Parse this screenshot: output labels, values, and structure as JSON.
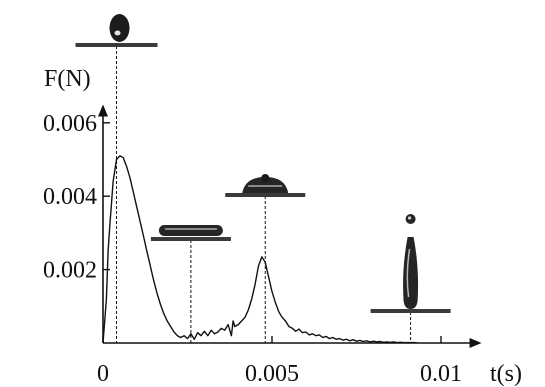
{
  "chart_data": {
    "type": "line",
    "title": "",
    "xlabel": "t(s)",
    "ylabel": "F(N)",
    "xlim": [
      0,
      0.0112
    ],
    "ylim": [
      0,
      0.0065
    ],
    "x_ticks": [
      {
        "value": 0,
        "label": "0"
      },
      {
        "value": 0.005,
        "label": "0.005"
      },
      {
        "value": 0.01,
        "label": "0.01"
      }
    ],
    "y_ticks": [
      {
        "value": 0.002,
        "label": "0.002"
      },
      {
        "value": 0.004,
        "label": "0.004"
      },
      {
        "value": 0.006,
        "label": "0.006"
      }
    ],
    "grid": false,
    "legend": "none",
    "series": [
      {
        "x": [
          0,
          5e-05,
          0.0001,
          0.00015,
          0.0002,
          0.00025,
          0.0003,
          0.0004,
          0.0005,
          0.0006,
          0.0007,
          0.0008,
          0.0009,
          0.001,
          0.0011,
          0.0012,
          0.0013,
          0.0014,
          0.0015,
          0.0016,
          0.0017,
          0.0018,
          0.0019,
          0.002,
          0.0021,
          0.0022,
          0.0023,
          0.0024,
          0.0025,
          0.0026,
          0.0027,
          0.0028,
          0.0029,
          0.003,
          0.0031,
          0.0032,
          0.0033,
          0.0034,
          0.0035,
          0.0036,
          0.0037,
          0.0038,
          0.00385,
          0.0039,
          0.004,
          0.0041,
          0.0042,
          0.0043,
          0.0044,
          0.0045,
          0.0046,
          0.0047,
          0.0048,
          0.0049,
          0.005,
          0.0051,
          0.0052,
          0.0053,
          0.0054,
          0.0055,
          0.0056,
          0.0057,
          0.0058,
          0.0059,
          0.006,
          0.0061,
          0.0062,
          0.0063,
          0.0064,
          0.0065,
          0.0066,
          0.0067,
          0.0068,
          0.0069,
          0.007,
          0.0071,
          0.0072,
          0.0073,
          0.0074,
          0.0075,
          0.0076,
          0.0077,
          0.0078,
          0.0079,
          0.008,
          0.0081,
          0.0082,
          0.0083,
          0.0084,
          0.0085,
          0.0086,
          0.0087,
          0.0088,
          0.0089,
          0.009,
          0.0091,
          0.0092,
          0.0093
        ],
        "y": [
          0,
          0.0006,
          0.0012,
          0.0025,
          0.0032,
          0.0038,
          0.0044,
          0.005,
          0.0051,
          0.00505,
          0.0048,
          0.0045,
          0.0041,
          0.0037,
          0.0033,
          0.0029,
          0.0025,
          0.0021,
          0.0017,
          0.00135,
          0.00105,
          0.0008,
          0.0006,
          0.00045,
          0.0003,
          0.0002,
          0.00015,
          0.0002,
          0.00012,
          0.00025,
          0.0001,
          0.00028,
          0.0002,
          0.00032,
          0.0002,
          0.00035,
          0.00025,
          0.0003,
          0.0004,
          0.00035,
          0.0005,
          0.0002,
          0.0006,
          0.00045,
          0.0005,
          0.0006,
          0.0007,
          0.0009,
          0.0012,
          0.0016,
          0.0021,
          0.00235,
          0.0022,
          0.0018,
          0.0014,
          0.0011,
          0.00085,
          0.0007,
          0.0006,
          0.00045,
          0.0004,
          0.00032,
          0.00038,
          0.00028,
          0.0003,
          0.00022,
          0.00025,
          0.0002,
          0.00022,
          0.00015,
          0.00018,
          0.00012,
          0.00015,
          0.0001,
          0.00012,
          8e-05,
          0.0001,
          6e-05,
          9e-05,
          5e-05,
          7e-05,
          4e-05,
          6e-05,
          3e-05,
          5e-05,
          3e-05,
          4e-05,
          2e-05,
          3e-05,
          2e-05,
          3e-05,
          1e-05,
          2e-05,
          1e-05,
          1e-05,
          1e-05,
          1e-05,
          5e-06
        ]
      }
    ],
    "annotations": [
      {
        "kind": "droplet-photo",
        "shape": "sphere",
        "t": 0.0004
      },
      {
        "kind": "droplet-photo",
        "shape": "flat-pancake",
        "t": 0.0026
      },
      {
        "kind": "droplet-photo",
        "shape": "small-dome",
        "t": 0.0048
      },
      {
        "kind": "droplet-photo",
        "shape": "vertical-jet",
        "t": 0.0091
      }
    ]
  }
}
